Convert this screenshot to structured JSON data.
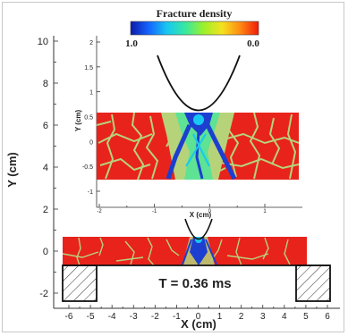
{
  "colorbar": {
    "title": "Fracture density",
    "min_label": "1.0",
    "max_label": "0.0",
    "colors": [
      "#0a1aa8",
      "#1565ff",
      "#18c8f0",
      "#38e8a0",
      "#9cf02a",
      "#f4e21e",
      "#ff8a12",
      "#f01a0a"
    ]
  },
  "main_plot": {
    "x_label": "X (cm)",
    "y_label": "Y (cm)",
    "x_ticks": [
      "-6",
      "-5",
      "-4",
      "-3",
      "-2",
      "-1",
      "0",
      "1",
      "2",
      "3",
      "4",
      "5",
      "6"
    ],
    "y_ticks": [
      "10",
      "8",
      "6",
      "4",
      "2",
      "0",
      "-2"
    ],
    "annotation": "T = 0.36 ms",
    "colors": {
      "intact": "#e8231c",
      "crack": "#b7d37a",
      "damage": "#1d3fd0"
    }
  },
  "inset_plot": {
    "x_label": "X (cm)",
    "y_label": "Y (cm)",
    "x_ticks": [
      "-2",
      "-1",
      "0",
      "1"
    ],
    "y_ticks": [
      "2",
      "1.5",
      "1",
      "0.5",
      "0",
      "-0.5",
      "-1"
    ]
  }
}
